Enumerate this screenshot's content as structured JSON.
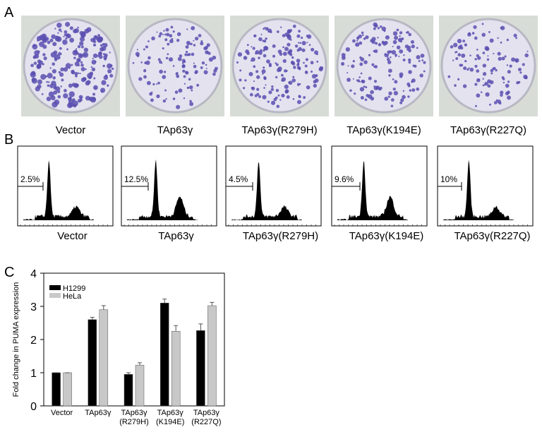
{
  "panel_a": {
    "letter": "A",
    "labels": [
      "Vector",
      "TAp63γ",
      "TAp63γ(R279H)",
      "TAp63γ(K194E)",
      "TAp63γ(R227Q)"
    ]
  },
  "panel_b": {
    "letter": "B",
    "percentages": [
      "2.5%",
      "12.5%",
      "4.5%",
      "9.6%",
      "10%"
    ],
    "labels": [
      "Vector",
      "TAp63γ",
      "TAp63γ(R279H)",
      "TAp63γ(K194E)",
      "TAp63γ(R227Q)"
    ]
  },
  "panel_c": {
    "letter": "C"
  },
  "chart_data": {
    "type": "bar",
    "y_label": "Fold change in PUMA expression",
    "categories": [
      [
        "Vector"
      ],
      [
        "TAp63γ"
      ],
      [
        "TAp63γ",
        "(R279H)"
      ],
      [
        "TAp63γ",
        "(K194E)"
      ],
      [
        "TAp63γ",
        "(R227Q)"
      ]
    ],
    "series": [
      {
        "name": "H1299",
        "color": "#000000",
        "values": [
          1,
          2.6,
          0.95,
          3.1,
          2.27
        ],
        "errors": [
          0,
          0.07,
          0.05,
          0.12,
          0.2
        ]
      },
      {
        "name": "HeLa",
        "color": "#c8c8c8",
        "values": [
          1,
          2.9,
          1.23,
          2.25,
          3.02
        ],
        "errors": [
          0,
          0.12,
          0.07,
          0.17,
          0.1
        ]
      }
    ],
    "ylim": [
      0,
      4
    ],
    "yticks": [
      0,
      1,
      2,
      3,
      4
    ],
    "legend": "top-left"
  }
}
